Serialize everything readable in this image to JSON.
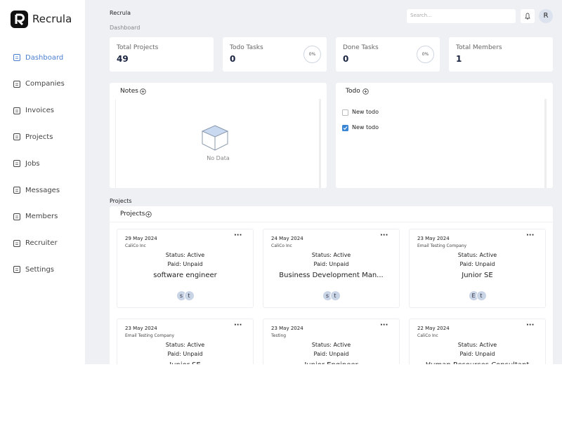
{
  "brand": "Recrula",
  "nav": [
    "Dashboard",
    "Companies",
    "Invoices",
    "Projects",
    "Jobs",
    "Messages",
    "Members",
    "Recruiter",
    "Settings"
  ],
  "header": {
    "breadcrumb": "Recrula",
    "page": "Dashboard",
    "search_placeholder": "Search...",
    "avatar": "R"
  },
  "stats": [
    {
      "label": "Total Projects",
      "value": 49
    },
    {
      "label": "Todo Tasks",
      "value": 0,
      "progress": "0%"
    },
    {
      "label": "Done Tasks",
      "value": 0,
      "progress": "0%"
    },
    {
      "label": "Total Members",
      "value": 1
    }
  ],
  "notes": {
    "title": "Notes",
    "empty": "No Data"
  },
  "todo": {
    "title": "Todo",
    "items": [
      {
        "text": "New todo",
        "done": false
      },
      {
        "text": "New todo",
        "done": true
      }
    ]
  },
  "projects_section": "Projects",
  "projects": {
    "title": "Projects",
    "cards": [
      {
        "date": "29 May 2024",
        "company": "CaliCo Inc",
        "status": "Status: Active",
        "paid": "Paid: Unpaid",
        "title": "software engineer",
        "avatars": [
          "s",
          "t"
        ]
      },
      {
        "date": "24 May 2024",
        "company": "CaliCo Inc",
        "status": "Status: Active",
        "paid": "Paid: Unpaid",
        "title": "Business Development Man...",
        "avatars": [
          "s",
          "t"
        ]
      },
      {
        "date": "23 May 2024",
        "company": "Email Testing Company",
        "status": "Status: Active",
        "paid": "Paid: Unpaid",
        "title": "Junior SE",
        "avatars": [
          "E",
          "t"
        ]
      },
      {
        "date": "23 May 2024",
        "company": "Email Testing Company",
        "status": "Status: Active",
        "paid": "Paid: Unpaid",
        "title": "Junior SE"
      },
      {
        "date": "23 May 2024",
        "company": "Testing",
        "status": "Status: Active",
        "paid": "Paid: Unpaid",
        "title": "Junior Engineer"
      },
      {
        "date": "22 May 2024",
        "company": "CaliCo Inc",
        "status": "Status: Active",
        "paid": "Paid: Unpaid",
        "title": "Human Resources Consultant"
      }
    ]
  }
}
